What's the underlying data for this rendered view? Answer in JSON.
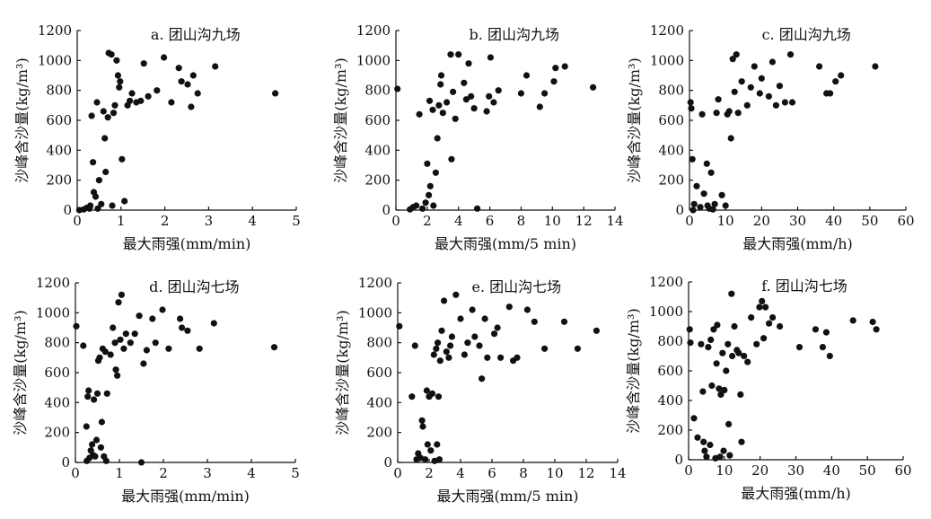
{
  "chart_data": [
    {
      "type": "scatter",
      "title": "a. 团山沟九场",
      "xlabel": "最大雨强(mm/min)",
      "ylabel": "沙峰含沙量(kg/m³)",
      "xlim": [
        0,
        5
      ],
      "ylim": [
        0,
        1200
      ],
      "xticks": [
        0,
        1,
        2,
        3,
        4,
        5
      ],
      "yticks": [
        0,
        200,
        400,
        600,
        800,
        1000,
        1200
      ],
      "points": [
        [
          0.05,
          0
        ],
        [
          0.15,
          5
        ],
        [
          0.22,
          15
        ],
        [
          0.28,
          10
        ],
        [
          0.3,
          30
        ],
        [
          0.33,
          630
        ],
        [
          0.36,
          320
        ],
        [
          0.38,
          120
        ],
        [
          0.42,
          90
        ],
        [
          0.45,
          720
        ],
        [
          0.47,
          10
        ],
        [
          0.5,
          200
        ],
        [
          0.55,
          40
        ],
        [
          0.6,
          660
        ],
        [
          0.63,
          480
        ],
        [
          0.65,
          255
        ],
        [
          0.7,
          620
        ],
        [
          0.72,
          1050
        ],
        [
          0.78,
          1040
        ],
        [
          0.8,
          30
        ],
        [
          0.83,
          650
        ],
        [
          0.86,
          700
        ],
        [
          0.9,
          1000
        ],
        [
          0.93,
          900
        ],
        [
          0.96,
          820
        ],
        [
          0.98,
          860
        ],
        [
          1.02,
          340
        ],
        [
          1.08,
          60
        ],
        [
          1.15,
          700
        ],
        [
          1.2,
          730
        ],
        [
          1.25,
          780
        ],
        [
          1.35,
          720
        ],
        [
          1.45,
          730
        ],
        [
          1.52,
          980
        ],
        [
          1.62,
          760
        ],
        [
          1.82,
          800
        ],
        [
          1.98,
          1020
        ],
        [
          2.15,
          720
        ],
        [
          2.32,
          950
        ],
        [
          2.38,
          860
        ],
        [
          2.52,
          840
        ],
        [
          2.6,
          690
        ],
        [
          2.65,
          900
        ],
        [
          2.75,
          780
        ],
        [
          3.15,
          960
        ],
        [
          4.52,
          780
        ]
      ]
    },
    {
      "type": "scatter",
      "title": "b. 团山沟九场",
      "xlabel": "最大雨强(mm/5 min)",
      "ylabel": "沙峰含沙量(kg/m³)",
      "xlim": [
        0,
        14
      ],
      "ylim": [
        0,
        1200
      ],
      "xticks": [
        0,
        2,
        4,
        6,
        8,
        10,
        12,
        14
      ],
      "yticks": [
        0,
        200,
        400,
        600,
        800,
        1000,
        1200
      ],
      "points": [
        [
          0.1,
          810
        ],
        [
          0.9,
          5
        ],
        [
          1.1,
          20
        ],
        [
          1.3,
          30
        ],
        [
          1.5,
          640
        ],
        [
          1.7,
          10
        ],
        [
          1.9,
          50
        ],
        [
          2.0,
          310
        ],
        [
          2.1,
          100
        ],
        [
          2.15,
          730
        ],
        [
          2.2,
          160
        ],
        [
          2.35,
          670
        ],
        [
          2.4,
          30
        ],
        [
          2.55,
          250
        ],
        [
          2.65,
          480
        ],
        [
          2.75,
          700
        ],
        [
          2.85,
          840
        ],
        [
          2.9,
          900
        ],
        [
          3.0,
          650
        ],
        [
          3.25,
          720
        ],
        [
          3.5,
          1040
        ],
        [
          3.55,
          340
        ],
        [
          3.65,
          790
        ],
        [
          3.8,
          610
        ],
        [
          4.0,
          1040
        ],
        [
          4.35,
          850
        ],
        [
          4.5,
          740
        ],
        [
          4.65,
          980
        ],
        [
          4.8,
          760
        ],
        [
          5.0,
          680
        ],
        [
          5.2,
          10
        ],
        [
          5.8,
          660
        ],
        [
          5.95,
          760
        ],
        [
          6.05,
          1020
        ],
        [
          6.25,
          720
        ],
        [
          6.55,
          800
        ],
        [
          8.0,
          780
        ],
        [
          8.35,
          900
        ],
        [
          9.2,
          690
        ],
        [
          9.5,
          780
        ],
        [
          10.1,
          860
        ],
        [
          10.2,
          950
        ],
        [
          10.8,
          960
        ],
        [
          12.6,
          820
        ]
      ]
    },
    {
      "type": "scatter",
      "title": "c. 团山沟九场",
      "xlabel": "最大雨强(mm/h)",
      "ylabel": "沙峰含沙量(kg/m³)",
      "xlim": [
        0,
        60
      ],
      "ylim": [
        0,
        1200
      ],
      "xticks": [
        0,
        10,
        20,
        30,
        40,
        50,
        60
      ],
      "yticks": [
        0,
        200,
        400,
        600,
        800,
        1000,
        1200
      ],
      "points": [
        [
          0.3,
          720
        ],
        [
          0.5,
          680
        ],
        [
          0.8,
          340
        ],
        [
          1.0,
          0
        ],
        [
          1.3,
          40
        ],
        [
          2.0,
          160
        ],
        [
          3.0,
          20
        ],
        [
          3.5,
          640
        ],
        [
          4.0,
          110
        ],
        [
          4.8,
          310
        ],
        [
          5.0,
          30
        ],
        [
          5.5,
          10
        ],
        [
          6.0,
          250
        ],
        [
          6.5,
          5
        ],
        [
          7.0,
          40
        ],
        [
          7.5,
          650
        ],
        [
          8.0,
          740
        ],
        [
          9.0,
          100
        ],
        [
          10.0,
          30
        ],
        [
          10.5,
          640
        ],
        [
          11.0,
          660
        ],
        [
          11.5,
          480
        ],
        [
          12.0,
          1010
        ],
        [
          12.5,
          790
        ],
        [
          13.0,
          1040
        ],
        [
          13.5,
          650
        ],
        [
          14.5,
          860
        ],
        [
          16.0,
          700
        ],
        [
          17.0,
          820
        ],
        [
          18.0,
          960
        ],
        [
          19.5,
          780
        ],
        [
          20.0,
          880
        ],
        [
          22.0,
          760
        ],
        [
          23.0,
          990
        ],
        [
          24.0,
          700
        ],
        [
          25.0,
          830
        ],
        [
          26.5,
          720
        ],
        [
          28.0,
          1040
        ],
        [
          28.5,
          720
        ],
        [
          36.0,
          960
        ],
        [
          38.0,
          780
        ],
        [
          39.0,
          780
        ],
        [
          40.5,
          860
        ],
        [
          42.0,
          900
        ],
        [
          51.5,
          960
        ]
      ]
    },
    {
      "type": "scatter",
      "title": "d. 团山沟七场",
      "xlabel": "最大雨强(mm/min)",
      "ylabel": "沙峰含沙量(kg/m³)",
      "xlim": [
        0,
        5
      ],
      "ylim": [
        0,
        1200
      ],
      "xticks": [
        0,
        1,
        2,
        3,
        4,
        5
      ],
      "yticks": [
        0,
        200,
        400,
        600,
        800,
        1000,
        1200
      ],
      "points": [
        [
          0.02,
          910
        ],
        [
          0.18,
          780
        ],
        [
          0.25,
          240
        ],
        [
          0.26,
          10
        ],
        [
          0.28,
          440
        ],
        [
          0.3,
          480
        ],
        [
          0.32,
          30
        ],
        [
          0.35,
          80
        ],
        [
          0.38,
          120
        ],
        [
          0.4,
          50
        ],
        [
          0.42,
          420
        ],
        [
          0.45,
          40
        ],
        [
          0.48,
          150
        ],
        [
          0.5,
          460
        ],
        [
          0.52,
          680
        ],
        [
          0.55,
          700
        ],
        [
          0.58,
          100
        ],
        [
          0.6,
          270
        ],
        [
          0.62,
          760
        ],
        [
          0.65,
          40
        ],
        [
          0.68,
          740
        ],
        [
          0.7,
          10
        ],
        [
          0.72,
          460
        ],
        [
          0.8,
          720
        ],
        [
          0.85,
          900
        ],
        [
          0.9,
          800
        ],
        [
          0.92,
          620
        ],
        [
          0.95,
          580
        ],
        [
          0.98,
          1070
        ],
        [
          1.02,
          820
        ],
        [
          1.05,
          1120
        ],
        [
          1.1,
          760
        ],
        [
          1.15,
          860
        ],
        [
          1.25,
          800
        ],
        [
          1.35,
          860
        ],
        [
          1.45,
          980
        ],
        [
          1.5,
          0
        ],
        [
          1.55,
          660
        ],
        [
          1.62,
          750
        ],
        [
          1.75,
          960
        ],
        [
          1.82,
          800
        ],
        [
          1.98,
          1020
        ],
        [
          2.12,
          760
        ],
        [
          2.38,
          960
        ],
        [
          2.42,
          900
        ],
        [
          2.55,
          880
        ],
        [
          2.82,
          760
        ],
        [
          3.15,
          930
        ],
        [
          4.52,
          770
        ]
      ]
    },
    {
      "type": "scatter",
      "title": "e. 团山沟七场",
      "xlabel": "最大雨强(mm/5 min)",
      "ylabel": "沙峰含沙量(kg/m³)",
      "xlim": [
        0,
        14
      ],
      "ylim": [
        0,
        1200
      ],
      "xticks": [
        0,
        2,
        4,
        6,
        8,
        10,
        12,
        14
      ],
      "yticks": [
        0,
        200,
        400,
        600,
        800,
        1000,
        1200
      ],
      "points": [
        [
          0.1,
          910
        ],
        [
          0.9,
          440
        ],
        [
          1.1,
          780
        ],
        [
          1.2,
          20
        ],
        [
          1.3,
          60
        ],
        [
          1.45,
          30
        ],
        [
          1.55,
          280
        ],
        [
          1.6,
          240
        ],
        [
          1.75,
          20
        ],
        [
          1.85,
          480
        ],
        [
          1.9,
          120
        ],
        [
          2.0,
          440
        ],
        [
          2.1,
          80
        ],
        [
          2.2,
          460
        ],
        [
          2.3,
          720
        ],
        [
          2.35,
          10
        ],
        [
          2.45,
          760
        ],
        [
          2.5,
          120
        ],
        [
          2.55,
          800
        ],
        [
          2.6,
          440
        ],
        [
          2.65,
          20
        ],
        [
          2.7,
          680
        ],
        [
          2.8,
          880
        ],
        [
          2.95,
          1080
        ],
        [
          3.1,
          740
        ],
        [
          3.25,
          700
        ],
        [
          3.35,
          780
        ],
        [
          3.45,
          840
        ],
        [
          3.7,
          1120
        ],
        [
          4.0,
          960
        ],
        [
          4.25,
          720
        ],
        [
          4.45,
          800
        ],
        [
          4.75,
          1020
        ],
        [
          4.9,
          840
        ],
        [
          5.2,
          780
        ],
        [
          5.35,
          560
        ],
        [
          5.55,
          960
        ],
        [
          5.7,
          700
        ],
        [
          6.15,
          860
        ],
        [
          6.35,
          900
        ],
        [
          6.55,
          700
        ],
        [
          7.1,
          1040
        ],
        [
          7.35,
          680
        ],
        [
          7.6,
          700
        ],
        [
          8.25,
          1020
        ],
        [
          8.7,
          940
        ],
        [
          9.35,
          760
        ],
        [
          10.6,
          940
        ],
        [
          11.45,
          760
        ],
        [
          12.65,
          880
        ]
      ]
    },
    {
      "type": "scatter",
      "title": "f. 团山沟七场",
      "xlabel": "最大雨强(mm/h)",
      "ylabel": "沙峰含沙量(kg/m³)",
      "xlim": [
        0,
        60
      ],
      "ylim": [
        0,
        1200
      ],
      "xticks": [
        0,
        10,
        20,
        30,
        40,
        50,
        60
      ],
      "yticks": [
        0,
        200,
        400,
        600,
        800,
        1000,
        1200
      ],
      "points": [
        [
          0.3,
          880
        ],
        [
          0.5,
          790
        ],
        [
          1.5,
          280
        ],
        [
          2.5,
          150
        ],
        [
          3.5,
          780
        ],
        [
          4.0,
          460
        ],
        [
          4.2,
          120
        ],
        [
          4.5,
          60
        ],
        [
          5.0,
          20
        ],
        [
          5.5,
          760
        ],
        [
          6.0,
          100
        ],
        [
          6.2,
          810
        ],
        [
          6.5,
          500
        ],
        [
          7.0,
          880
        ],
        [
          7.5,
          10
        ],
        [
          7.8,
          650
        ],
        [
          8.0,
          910
        ],
        [
          8.5,
          480
        ],
        [
          8.8,
          20
        ],
        [
          9.0,
          440
        ],
        [
          9.5,
          720
        ],
        [
          9.8,
          60
        ],
        [
          10.0,
          470
        ],
        [
          10.5,
          600
        ],
        [
          11.0,
          780
        ],
        [
          11.2,
          240
        ],
        [
          11.5,
          30
        ],
        [
          12.0,
          1120
        ],
        [
          12.2,
          700
        ],
        [
          12.8,
          900
        ],
        [
          13.5,
          740
        ],
        [
          14.0,
          720
        ],
        [
          14.5,
          440
        ],
        [
          14.8,
          120
        ],
        [
          15.5,
          700
        ],
        [
          16.5,
          660
        ],
        [
          17.5,
          960
        ],
        [
          19.0,
          780
        ],
        [
          19.8,
          1030
        ],
        [
          20.5,
          1070
        ],
        [
          21.0,
          820
        ],
        [
          21.5,
          1030
        ],
        [
          22.5,
          920
        ],
        [
          23.5,
          960
        ],
        [
          25.5,
          900
        ],
        [
          31.0,
          760
        ],
        [
          35.5,
          880
        ],
        [
          37.5,
          760
        ],
        [
          38.5,
          860
        ],
        [
          39.5,
          700
        ],
        [
          46.0,
          940
        ],
        [
          51.5,
          930
        ],
        [
          52.5,
          880
        ]
      ]
    }
  ]
}
